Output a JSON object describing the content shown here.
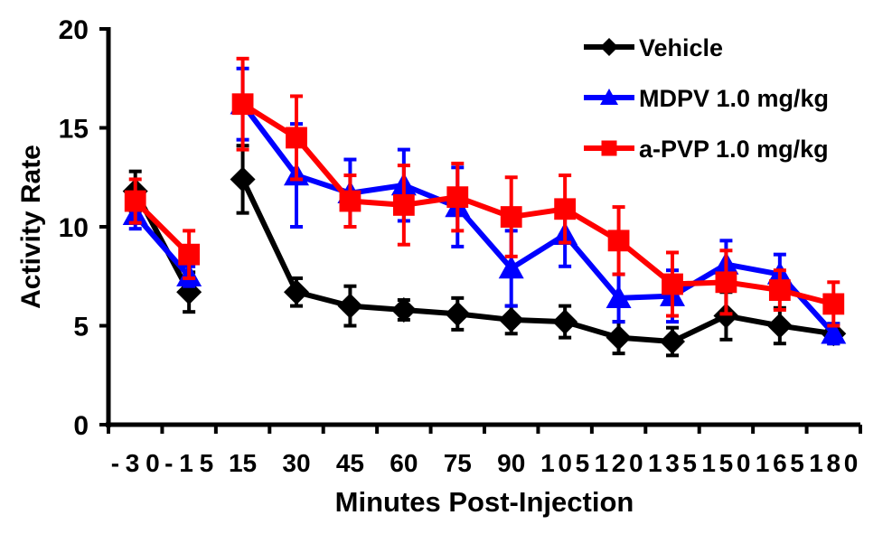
{
  "chart_data": {
    "type": "line",
    "title": "",
    "xlabel": "Minutes Post-Injection",
    "ylabel": "Activity Rate",
    "ylim": [
      0,
      20
    ],
    "yticks": [
      "0",
      "5",
      "10",
      "15",
      "20"
    ],
    "ytick_values": [
      0,
      5,
      10,
      15,
      20
    ],
    "categories": [
      "-30",
      "-15",
      "15",
      "30",
      "45",
      "60",
      "75",
      "90",
      "105",
      "120",
      "135",
      "150",
      "165",
      "180"
    ],
    "segments_break_after": "-15",
    "legend_position": "top-right",
    "grid": false,
    "series": [
      {
        "name": "Vehicle",
        "color": "#000000",
        "marker": "diamond",
        "values": [
          11.8,
          6.7,
          12.4,
          6.7,
          6.0,
          5.8,
          5.6,
          5.3,
          5.2,
          4.4,
          4.2,
          5.5,
          5.0,
          4.6
        ],
        "errors": [
          1.0,
          1.0,
          1.7,
          0.7,
          1.0,
          0.5,
          0.8,
          0.7,
          0.8,
          0.8,
          0.7,
          1.2,
          0.9,
          0.5
        ]
      },
      {
        "name": "MDPV 1.0 mg/kg",
        "color": "#0000ff",
        "marker": "triangle",
        "values": [
          10.6,
          7.5,
          16.2,
          12.6,
          11.7,
          12.1,
          11.0,
          7.9,
          9.6,
          6.4,
          6.5,
          8.1,
          7.6,
          4.6
        ],
        "errors": [
          0.7,
          0.5,
          1.8,
          2.6,
          1.7,
          1.8,
          2.0,
          1.9,
          1.6,
          1.2,
          1.3,
          1.2,
          1.0,
          0.5
        ]
      },
      {
        "name": "a-PVP 1.0 mg/kg",
        "color": "#ff0000",
        "marker": "square",
        "values": [
          11.3,
          8.6,
          16.2,
          14.5,
          11.3,
          11.1,
          11.5,
          10.5,
          10.9,
          9.3,
          7.1,
          7.2,
          6.8,
          6.1
        ],
        "errors": [
          1.1,
          1.2,
          2.3,
          2.1,
          1.3,
          2.0,
          1.7,
          2.0,
          1.7,
          1.7,
          1.6,
          1.6,
          1.0,
          1.1
        ]
      }
    ]
  }
}
